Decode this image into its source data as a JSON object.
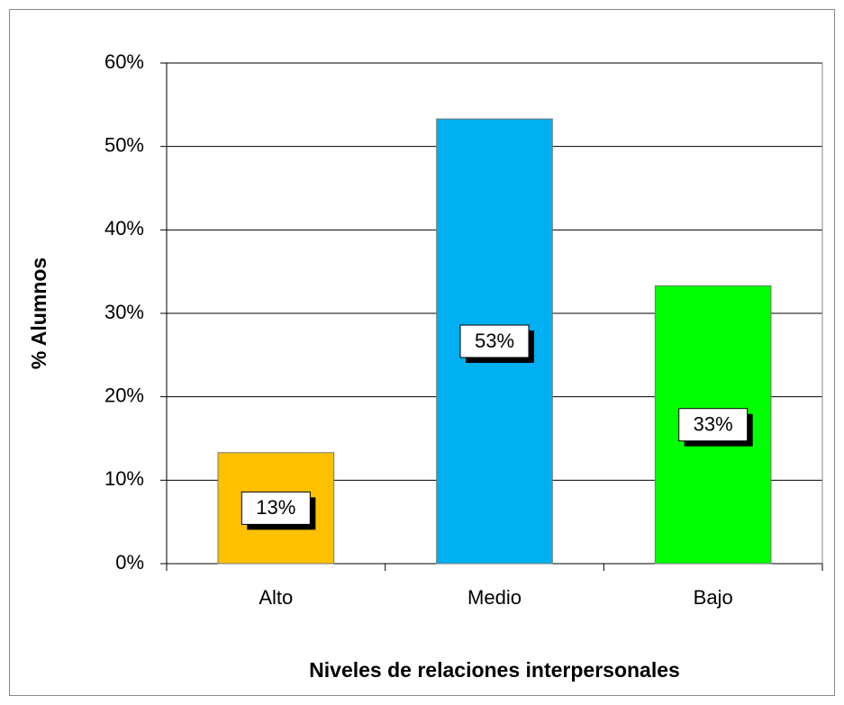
{
  "chart_data": {
    "type": "bar",
    "categories": [
      "Alto",
      "Medio",
      "Bajo"
    ],
    "values": [
      13.3,
      53.3,
      33.3
    ],
    "value_labels": [
      "13%",
      "53%",
      "33%"
    ],
    "colors": [
      "#FFC000",
      "#00B0F0",
      "#00FF00"
    ],
    "ylim": [
      0,
      60
    ],
    "yticks": [
      {
        "value": 0,
        "label": "0%"
      },
      {
        "value": 10,
        "label": "10%"
      },
      {
        "value": 20,
        "label": "20%"
      },
      {
        "value": 30,
        "label": "30%"
      },
      {
        "value": 40,
        "label": "40%"
      },
      {
        "value": 50,
        "label": "50%"
      },
      {
        "value": 60,
        "label": "60%"
      }
    ],
    "grid": true,
    "y_label": "% Alumnos",
    "x_label": "Niveles de relaciones interpersonales"
  }
}
